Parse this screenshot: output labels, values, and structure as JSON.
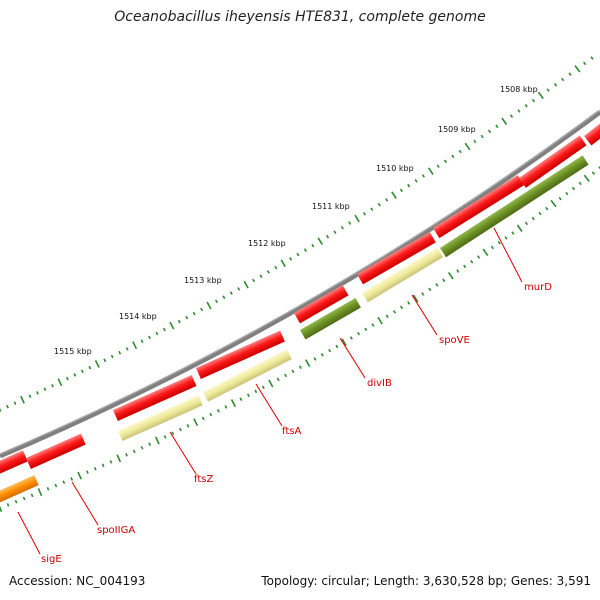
{
  "title": "Oceanobacillus iheyensis HTE831, complete genome",
  "footer": {
    "accession": "Accession: NC_004193",
    "topology": "Topology: circular; Length: 3,630,528 bp; Genes: 3,591"
  },
  "colors": {
    "backbone": "#808080",
    "forward_gene": "#ff0000",
    "reverse_gene_yellow": "#eeea9a",
    "reverse_gene_green": "#6b8e23",
    "reverse_gene_orange": "#ff8c00",
    "gene_label": "#cc0000",
    "tick": "#2e8b2e"
  },
  "ruler": [
    {
      "label": "1508 kbp",
      "kbp": 1508
    },
    {
      "label": "1509 kbp",
      "kbp": 1509
    },
    {
      "label": "1510 kbp",
      "kbp": 1510
    },
    {
      "label": "1511 kbp",
      "kbp": 1511
    },
    {
      "label": "1512 kbp",
      "kbp": 1512
    },
    {
      "label": "1513 kbp",
      "kbp": 1513
    },
    {
      "label": "1514 kbp",
      "kbp": 1514
    },
    {
      "label": "1515 kbp",
      "kbp": 1515
    }
  ],
  "gene_labels": [
    {
      "name": "murD",
      "strand": "reverse",
      "color": "green"
    },
    {
      "name": "spoVE",
      "strand": "reverse",
      "color": "yellow"
    },
    {
      "name": "divIB",
      "strand": "reverse",
      "color": "green"
    },
    {
      "name": "ftsA",
      "strand": "reverse",
      "color": "yellow"
    },
    {
      "name": "ftsZ",
      "strand": "reverse",
      "color": "yellow"
    },
    {
      "name": "spoIIGA",
      "strand": "reverse",
      "color": "orange"
    },
    {
      "name": "sigE",
      "strand": "reverse",
      "color": "orange"
    }
  ]
}
